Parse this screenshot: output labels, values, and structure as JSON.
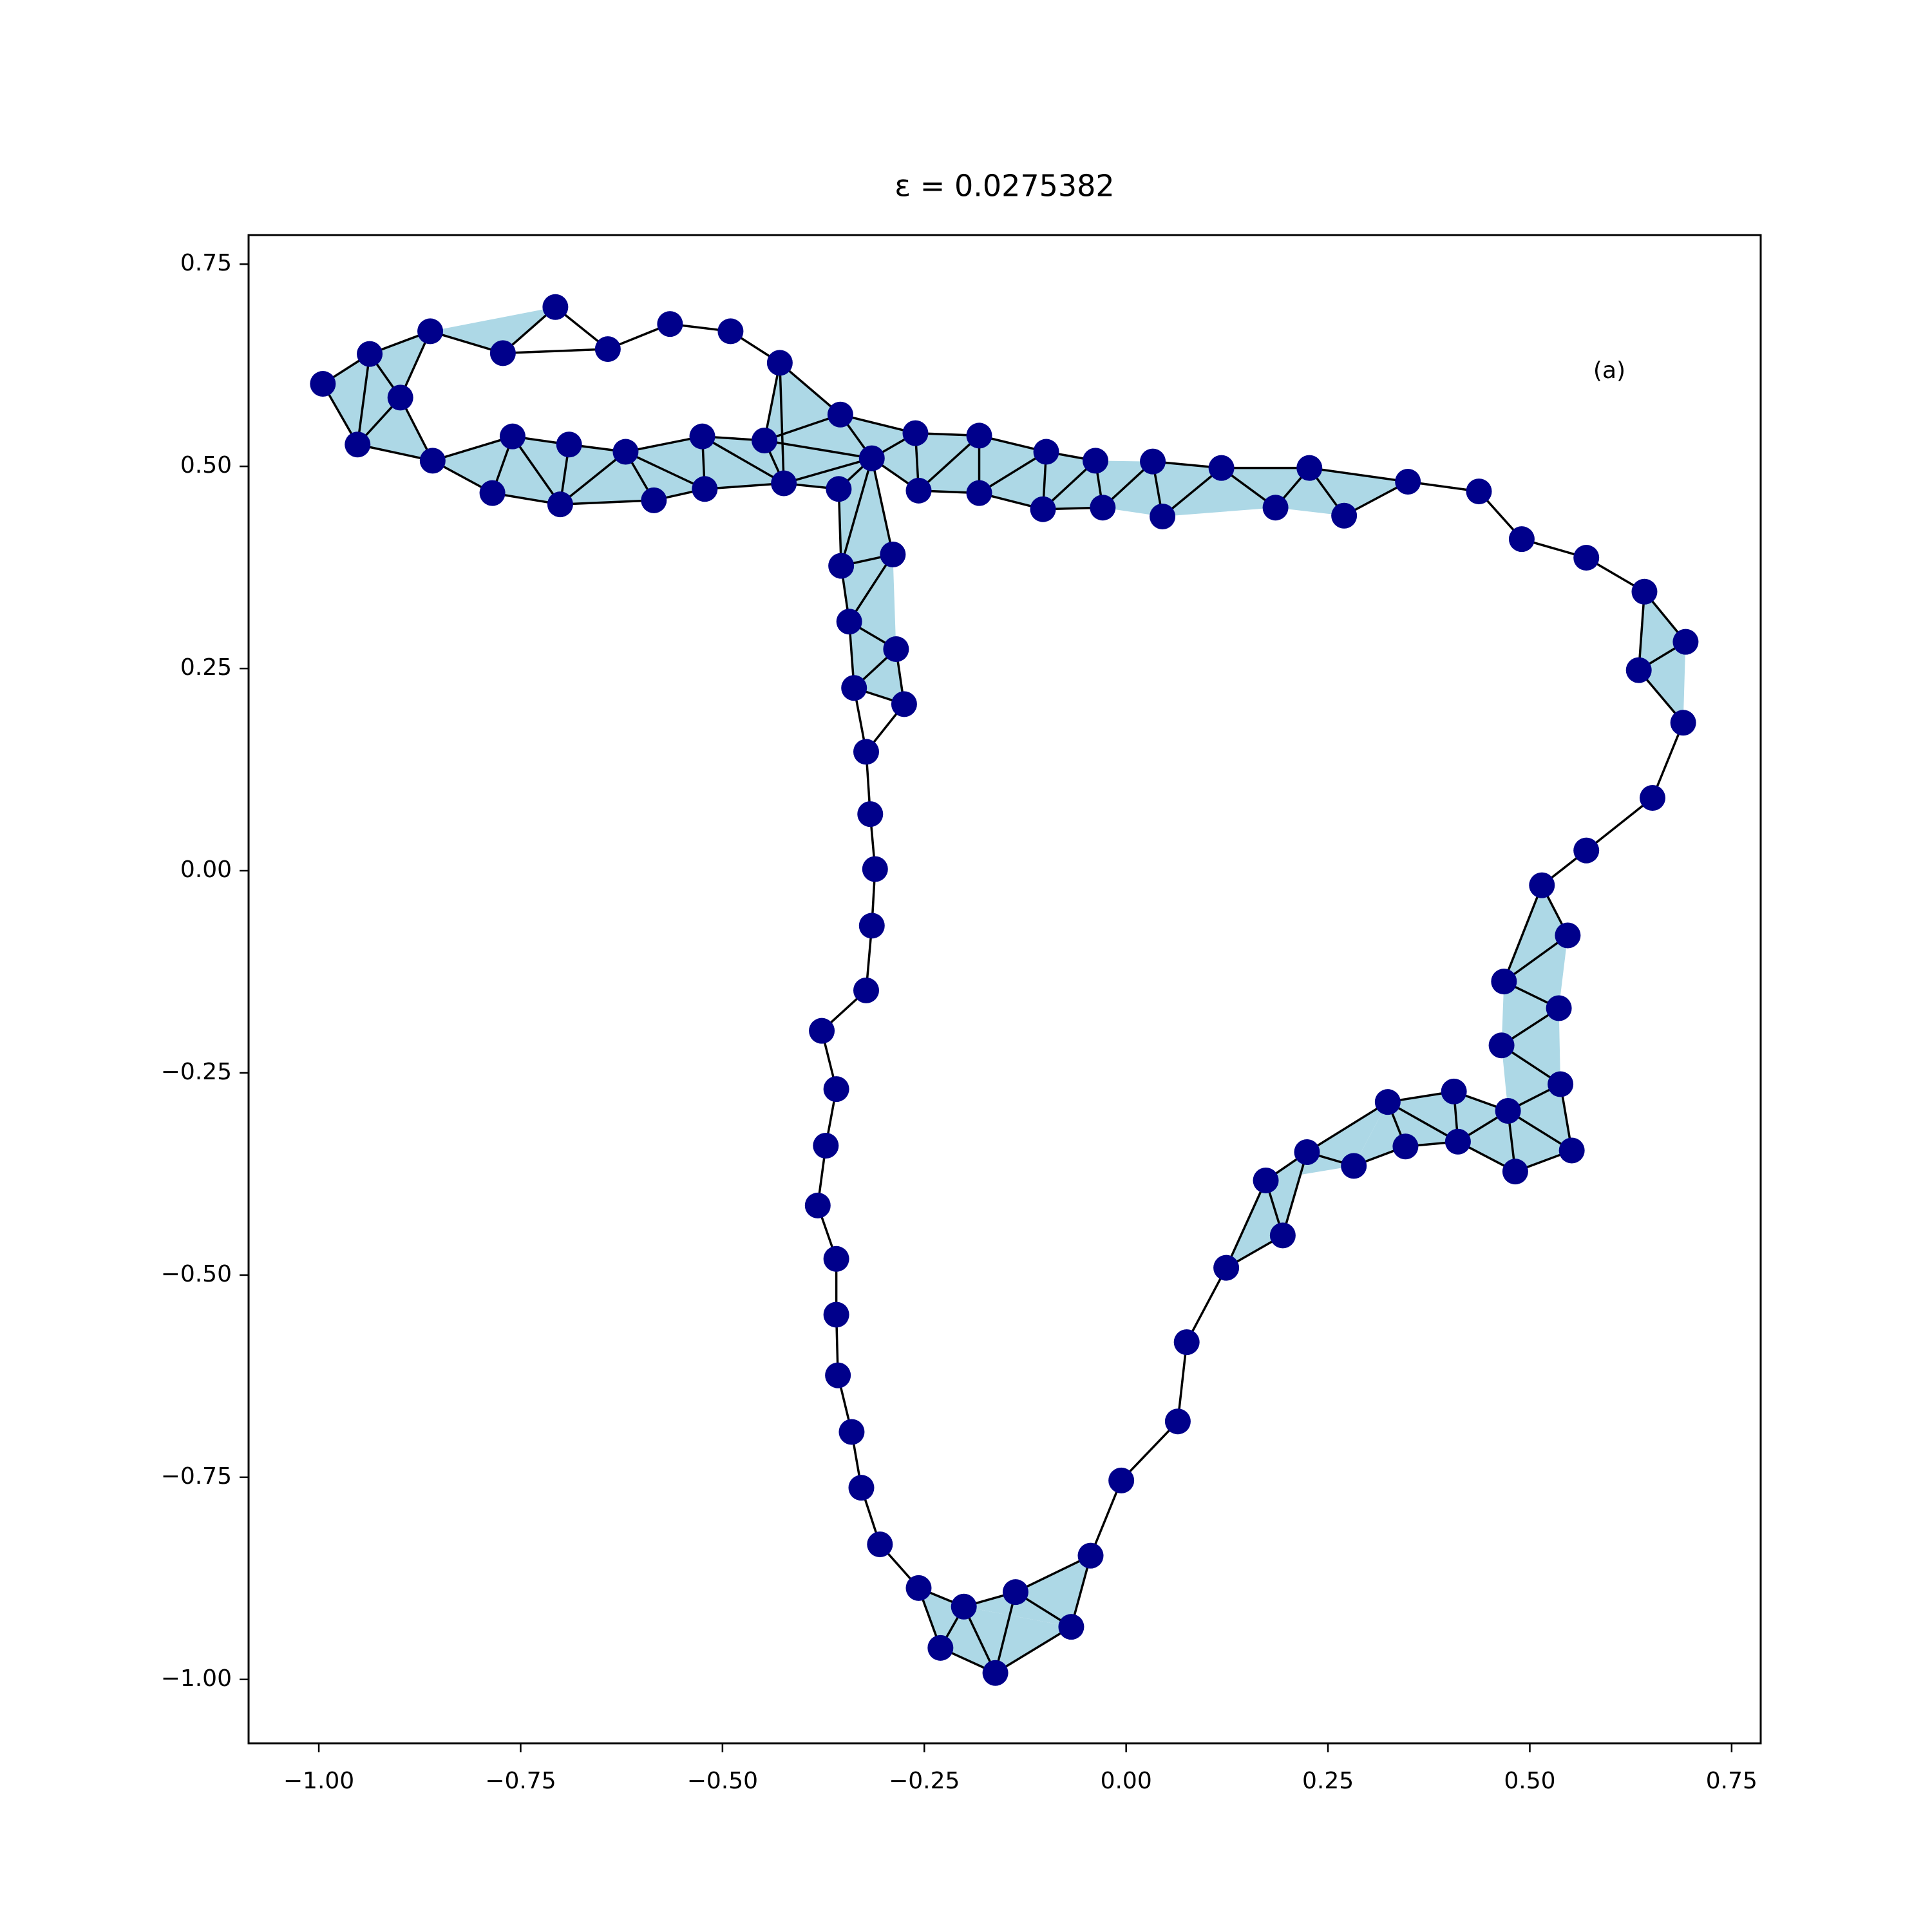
{
  "chart_data": {
    "type": "complex",
    "title": "ε = 0.0275382",
    "annotation": "(a)",
    "xlim": [
      -1.087,
      0.786
    ],
    "ylim": [
      -1.079,
      0.786
    ],
    "xticks": [
      {
        "value": -1,
        "label": "−1.00"
      },
      {
        "value": -0.75,
        "label": "−0.75"
      },
      {
        "value": -0.5,
        "label": "−0.50"
      },
      {
        "value": -0.25,
        "label": "−0.25"
      },
      {
        "value": 0,
        "label": "0.00"
      },
      0.25,
      {
        "value": 0.5,
        "label": "0.50"
      },
      0.75
    ],
    "yticks": [
      {
        "value": -1,
        "label": "−1.00"
      },
      {
        "value": -0.75,
        "label": "−0.75"
      },
      {
        "value": -0.5,
        "label": "−0.50"
      },
      {
        "value": -0.25,
        "label": "−0.25"
      },
      {
        "value": 0,
        "label": "0.00"
      },
      0.25,
      {
        "value": 0.5,
        "label": "0.50"
      },
      0.75
    ],
    "edge_color": "#000000",
    "face_color": "#add8e6",
    "series": [
      {
        "color": "#00008b",
        "x": [
          -0.995,
          -0.937,
          -0.862,
          -0.707,
          -0.772,
          -0.642,
          -0.565,
          -0.49,
          -0.429,
          -0.899,
          -0.952,
          -0.859,
          -0.785,
          -0.76,
          -0.69,
          -0.701,
          -0.62,
          -0.585,
          -0.525,
          -0.522,
          -0.448,
          -0.424,
          -0.354,
          -0.315,
          -0.261,
          -0.257,
          -0.356,
          -0.182,
          -0.182,
          -0.099,
          -0.103,
          -0.038,
          -0.029,
          0.033,
          0.045,
          0.118,
          0.185,
          0.227,
          0.27,
          0.349,
          0.437,
          0.49,
          0.57,
          0.642,
          0.693,
          0.635,
          0.69,
          0.652,
          0.57,
          0.515,
          0.547,
          0.468,
          0.536,
          0.465,
          0.538,
          0.473,
          0.552,
          0.482,
          0.406,
          0.411,
          0.324,
          0.346,
          0.282,
          0.224,
          0.173,
          0.194,
          0.124,
          0.075,
          0.064,
          -0.006,
          -0.044,
          -0.068,
          -0.137,
          -0.201,
          -0.162,
          -0.23,
          -0.257,
          -0.305,
          -0.328,
          -0.34,
          -0.357,
          -0.359,
          -0.359,
          -0.382,
          -0.372,
          -0.359,
          -0.377,
          -0.322,
          -0.315,
          -0.311,
          -0.317,
          -0.322,
          -0.275,
          -0.337,
          -0.285,
          -0.343,
          -0.289,
          -0.353
        ],
        "values": [
          0.602,
          0.639,
          0.667,
          0.697,
          0.64,
          0.645,
          0.676,
          0.667,
          0.628,
          0.585,
          0.527,
          0.507,
          0.467,
          0.537,
          0.527,
          0.453,
          0.518,
          0.458,
          0.537,
          0.472,
          0.532,
          0.479,
          0.564,
          0.51,
          0.541,
          0.47,
          0.472,
          0.538,
          0.467,
          0.518,
          0.447,
          0.507,
          0.449,
          0.506,
          0.438,
          0.498,
          0.449,
          0.498,
          0.439,
          0.481,
          0.469,
          0.41,
          0.387,
          0.345,
          0.283,
          0.248,
          0.183,
          0.09,
          0.025,
          -0.018,
          -0.08,
          -0.137,
          -0.17,
          -0.216,
          -0.264,
          -0.297,
          -0.346,
          -0.372,
          -0.273,
          -0.335,
          -0.286,
          -0.341,
          -0.365,
          -0.348,
          -0.383,
          -0.451,
          -0.491,
          -0.583,
          -0.681,
          -0.754,
          -0.847,
          -0.935,
          -0.892,
          -0.91,
          -0.992,
          -0.961,
          -0.887,
          -0.833,
          -0.763,
          -0.694,
          -0.624,
          -0.549,
          -0.48,
          -0.414,
          -0.34,
          -0.27,
          -0.198,
          -0.148,
          -0.068,
          0.002,
          0.07,
          0.147,
          0.206,
          0.226,
          0.274,
          0.308,
          0.391,
          0.377
        ]
      }
    ],
    "edges": [
      [
        0,
        1
      ],
      [
        1,
        2
      ],
      [
        2,
        4
      ],
      [
        4,
        3
      ],
      [
        3,
        5
      ],
      [
        4,
        5
      ],
      [
        5,
        6
      ],
      [
        6,
        7
      ],
      [
        7,
        8
      ],
      [
        8,
        22
      ],
      [
        8,
        21
      ],
      [
        8,
        20
      ],
      [
        0,
        10
      ],
      [
        1,
        9
      ],
      [
        9,
        10
      ],
      [
        10,
        11
      ],
      [
        9,
        11
      ],
      [
        1,
        10
      ],
      [
        2,
        9
      ],
      [
        11,
        13
      ],
      [
        11,
        12
      ],
      [
        12,
        13
      ],
      [
        13,
        14
      ],
      [
        12,
        15
      ],
      [
        14,
        15
      ],
      [
        13,
        15
      ],
      [
        14,
        16
      ],
      [
        15,
        17
      ],
      [
        16,
        17
      ],
      [
        15,
        16
      ],
      [
        16,
        18
      ],
      [
        17,
        19
      ],
      [
        16,
        19
      ],
      [
        18,
        19
      ],
      [
        18,
        20
      ],
      [
        19,
        21
      ],
      [
        18,
        21
      ],
      [
        20,
        21
      ],
      [
        20,
        23
      ],
      [
        21,
        23
      ],
      [
        20,
        22
      ],
      [
        22,
        23
      ],
      [
        22,
        24
      ],
      [
        23,
        24
      ],
      [
        23,
        25
      ],
      [
        24,
        25
      ],
      [
        23,
        26
      ],
      [
        21,
        26
      ],
      [
        26,
        97
      ],
      [
        23,
        97
      ],
      [
        23,
        96
      ],
      [
        97,
        96
      ],
      [
        97,
        95
      ],
      [
        96,
        95
      ],
      [
        95,
        94
      ],
      [
        95,
        93
      ],
      [
        94,
        93
      ],
      [
        94,
        92
      ],
      [
        93,
        92
      ],
      [
        93,
        91
      ],
      [
        92,
        91
      ],
      [
        91,
        90
      ],
      [
        90,
        89
      ],
      [
        89,
        88
      ],
      [
        88,
        87
      ],
      [
        87,
        86
      ],
      [
        86,
        85
      ],
      [
        85,
        84
      ],
      [
        84,
        83
      ],
      [
        83,
        82
      ],
      [
        82,
        81
      ],
      [
        81,
        80
      ],
      [
        80,
        79
      ],
      [
        79,
        78
      ],
      [
        78,
        77
      ],
      [
        77,
        76
      ],
      [
        76,
        73
      ],
      [
        76,
        75
      ],
      [
        73,
        75
      ],
      [
        73,
        72
      ],
      [
        72,
        74
      ],
      [
        75,
        74
      ],
      [
        73,
        74
      ],
      [
        72,
        71
      ],
      [
        74,
        71
      ],
      [
        71,
        70
      ],
      [
        72,
        70
      ],
      [
        70,
        69
      ],
      [
        69,
        68
      ],
      [
        68,
        67
      ],
      [
        67,
        66
      ],
      [
        66,
        65
      ],
      [
        66,
        64
      ],
      [
        64,
        65
      ],
      [
        64,
        63
      ],
      [
        65,
        63
      ],
      [
        63,
        62
      ],
      [
        63,
        60
      ],
      [
        62,
        61
      ],
      [
        60,
        61
      ],
      [
        60,
        58
      ],
      [
        61,
        59
      ],
      [
        58,
        59
      ],
      [
        60,
        59
      ],
      [
        58,
        55
      ],
      [
        59,
        57
      ],
      [
        55,
        57
      ],
      [
        59,
        55
      ],
      [
        57,
        56
      ],
      [
        55,
        56
      ],
      [
        55,
        54
      ],
      [
        56,
        54
      ],
      [
        54,
        53
      ],
      [
        53,
        52
      ],
      [
        52,
        51
      ],
      [
        51,
        50
      ],
      [
        51,
        49
      ],
      [
        50,
        49
      ],
      [
        49,
        48
      ],
      [
        48,
        47
      ],
      [
        47,
        46
      ],
      [
        46,
        45
      ],
      [
        45,
        44
      ],
      [
        44,
        43
      ],
      [
        45,
        43
      ],
      [
        43,
        42
      ],
      [
        42,
        41
      ],
      [
        41,
        40
      ],
      [
        40,
        39
      ],
      [
        39,
        38
      ],
      [
        39,
        37
      ],
      [
        38,
        37
      ],
      [
        37,
        36
      ],
      [
        36,
        35
      ],
      [
        37,
        35
      ],
      [
        35,
        34
      ],
      [
        35,
        33
      ],
      [
        34,
        33
      ],
      [
        33,
        32
      ],
      [
        32,
        31
      ],
      [
        31,
        29
      ],
      [
        32,
        30
      ],
      [
        31,
        30
      ],
      [
        29,
        30
      ],
      [
        29,
        27
      ],
      [
        30,
        28
      ],
      [
        27,
        28
      ],
      [
        28,
        29
      ],
      [
        27,
        24
      ],
      [
        28,
        25
      ],
      [
        25,
        27
      ]
    ],
    "triangles": [
      [
        0,
        1,
        10
      ],
      [
        1,
        9,
        10
      ],
      [
        9,
        10,
        11
      ],
      [
        1,
        2,
        9
      ],
      [
        2,
        3,
        4
      ],
      [
        11,
        12,
        13
      ],
      [
        12,
        13,
        15
      ],
      [
        13,
        14,
        15
      ],
      [
        14,
        15,
        16
      ],
      [
        15,
        16,
        17
      ],
      [
        16,
        17,
        19
      ],
      [
        16,
        18,
        19
      ],
      [
        18,
        19,
        21
      ],
      [
        18,
        20,
        21
      ],
      [
        20,
        21,
        23
      ],
      [
        20,
        22,
        23
      ],
      [
        8,
        20,
        22
      ],
      [
        21,
        23,
        26
      ],
      [
        22,
        23,
        24
      ],
      [
        23,
        24,
        25
      ],
      [
        23,
        26,
        97
      ],
      [
        23,
        96,
        97
      ],
      [
        95,
        96,
        97
      ],
      [
        94,
        95,
        96
      ],
      [
        93,
        94,
        95
      ],
      [
        92,
        93,
        94
      ],
      [
        25,
        27,
        28
      ],
      [
        24,
        25,
        27
      ],
      [
        27,
        28,
        29
      ],
      [
        28,
        29,
        30
      ],
      [
        29,
        30,
        31
      ],
      [
        30,
        31,
        32
      ],
      [
        31,
        32,
        33
      ],
      [
        32,
        33,
        34
      ],
      [
        33,
        34,
        35
      ],
      [
        34,
        35,
        36
      ],
      [
        35,
        36,
        37
      ],
      [
        36,
        37,
        38
      ],
      [
        37,
        38,
        39
      ],
      [
        43,
        44,
        45
      ],
      [
        44,
        45,
        46
      ],
      [
        49,
        50,
        51
      ],
      [
        50,
        51,
        52
      ],
      [
        51,
        52,
        53
      ],
      [
        52,
        53,
        54
      ],
      [
        53,
        54,
        55
      ],
      [
        54,
        55,
        56
      ],
      [
        55,
        56,
        57
      ],
      [
        55,
        57,
        59
      ],
      [
        55,
        58,
        59
      ],
      [
        58,
        59,
        60
      ],
      [
        59,
        60,
        61
      ],
      [
        60,
        61,
        62
      ],
      [
        60,
        62,
        63
      ],
      [
        62,
        63,
        64
      ],
      [
        63,
        64,
        65
      ],
      [
        64,
        65,
        66
      ],
      [
        70,
        71,
        72
      ],
      [
        71,
        72,
        73
      ],
      [
        71,
        73,
        74
      ],
      [
        73,
        74,
        75
      ],
      [
        73,
        75,
        76
      ]
    ]
  }
}
